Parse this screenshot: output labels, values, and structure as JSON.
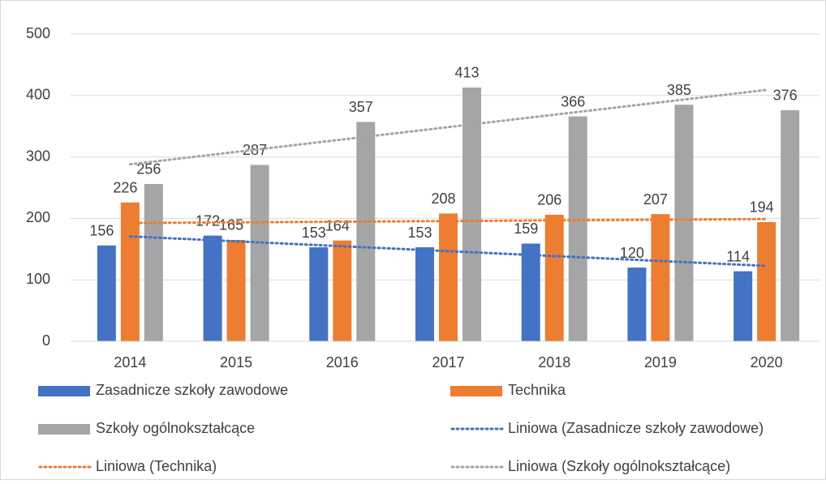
{
  "chart_data": {
    "type": "bar",
    "categories": [
      "2014",
      "2015",
      "2016",
      "2017",
      "2018",
      "2019",
      "2020"
    ],
    "series": [
      {
        "name": "Zasadnicze szkoły zawodowe",
        "color": "#4472c4",
        "values": [
          156,
          172,
          153,
          153,
          159,
          120,
          114
        ],
        "trendline": {
          "name": "Liniowa (Zasadnicze szkoły zawodowe)",
          "color": "#4472c4"
        }
      },
      {
        "name": "Technika",
        "color": "#ed7d31",
        "values": [
          226,
          165,
          164,
          208,
          206,
          207,
          194
        ],
        "trendline": {
          "name": "Liniowa (Technika)",
          "color": "#ed7d31"
        }
      },
      {
        "name": "Szkoły ogólnokształcące",
        "color": "#a5a5a5",
        "values": [
          256,
          287,
          357,
          413,
          366,
          385,
          376
        ],
        "trendline": {
          "name": "Liniowa (Szkoły ogólnokształcące)",
          "color": "#a5a5a5"
        }
      }
    ],
    "ylim": [
      0,
      500
    ],
    "yticks": [
      0,
      100,
      200,
      300,
      400,
      500
    ],
    "grid": true,
    "legend": "bottom"
  }
}
